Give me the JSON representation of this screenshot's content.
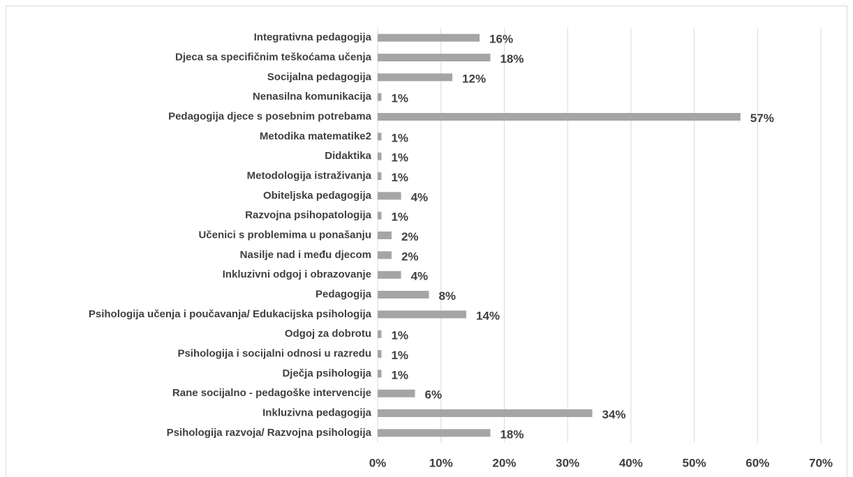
{
  "chart_data": {
    "type": "bar",
    "orientation": "horizontal",
    "categories": [
      "Integrativna pedagogija",
      "Djeca sa specifičnim teškoćama učenja",
      "Socijalna pedagogija",
      "Nenasilna komunikacija",
      "Pedagogija djece s posebnim potrebama",
      "Metodika matematike2",
      "Didaktika",
      "Metodologija istraživanja",
      "Obiteljska pedagogija",
      "Razvojna psihopatologija",
      "Učenici s problemima u ponašanju",
      "Nasilje nad i među djecom",
      "Inkluzivni odgoj i obrazovanje",
      "Pedagogija",
      "Psihologija učenja i poučavanja/ Edukacijska psihologija",
      "Odgoj za dobrotu",
      "Psihologija i socijalni odnosi u razredu",
      "Dječja psihologija",
      "Rane socijalno - pedagoške intervencije",
      "Inkluzivna pedagogija",
      "Psihologija razvoja/ Razvojna psihologija"
    ],
    "values": [
      16.1,
      17.8,
      11.8,
      0.6,
      57.3,
      0.6,
      0.6,
      0.6,
      3.7,
      0.6,
      2.2,
      2.2,
      3.7,
      8.1,
      14,
      0.6,
      0.6,
      0.6,
      5.9,
      33.9,
      17.8
    ],
    "value_labels": [
      "16%",
      "18%",
      "12%",
      "1%",
      "57%",
      "1%",
      "1%",
      "1%",
      "4%",
      "1%",
      "2%",
      "2%",
      "4%",
      "8%",
      "14%",
      "1%",
      "1%",
      "1%",
      "6%",
      "34%",
      "18%"
    ],
    "color": "#a5a5a5",
    "xlim": [
      0,
      70
    ],
    "xticks": [
      {
        "value": 0,
        "label": "0%"
      },
      {
        "value": 10,
        "label": "10%"
      },
      {
        "value": 20,
        "label": "20%"
      },
      {
        "value": 30,
        "label": "30%"
      },
      {
        "value": 40,
        "label": "40%"
      },
      {
        "value": 50,
        "label": "50%"
      },
      {
        "value": 60,
        "label": "60%"
      },
      {
        "value": 70,
        "label": "70%"
      }
    ],
    "grid": true
  }
}
